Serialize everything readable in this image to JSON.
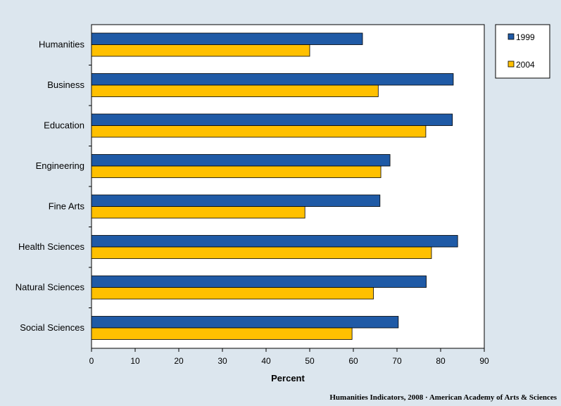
{
  "chart_data": {
    "type": "bar",
    "orientation": "horizontal",
    "categories": [
      "Humanities",
      "Business",
      "Education",
      "Engineering",
      "Fine Arts",
      "Health Sciences",
      "Natural Sciences",
      "Social Sciences"
    ],
    "series": [
      {
        "name": "1999",
        "color": "#1f5aa6",
        "values": [
          62.1,
          82.9,
          82.7,
          68.4,
          66.1,
          83.9,
          76.7,
          70.3
        ]
      },
      {
        "name": "2004",
        "color": "#ffc000",
        "values": [
          50.0,
          65.7,
          76.6,
          66.3,
          48.9,
          77.9,
          64.6,
          59.7
        ]
      }
    ],
    "title": "",
    "xlabel": "Percent",
    "ylabel": "",
    "xlim": [
      0,
      90
    ],
    "xticks": [
      "0",
      "10",
      "20",
      "30",
      "40",
      "50",
      "60",
      "70",
      "80",
      "90"
    ],
    "grid": false,
    "legend_position": "top-right"
  },
  "credit": "Humanities Indicators, 2008 · American Academy of Arts & Sciences"
}
